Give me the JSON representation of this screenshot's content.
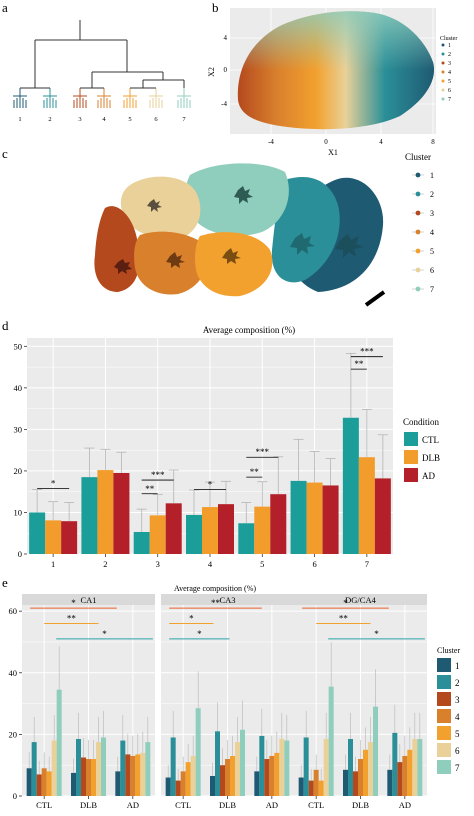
{
  "panels": {
    "a": {
      "label": "a",
      "leaf_labels": [
        "1",
        "2",
        "3",
        "4",
        "5",
        "6",
        "7"
      ]
    },
    "b": {
      "label": "b",
      "xlabel": "X1",
      "ylabel": "X2",
      "x_ticks": [
        "-4",
        "0",
        "4",
        "8"
      ],
      "y_ticks": [
        "4",
        "0",
        "-4"
      ],
      "legend_title": "Cluster",
      "legend_items": [
        "1",
        "2",
        "3",
        "4",
        "5",
        "6",
        "7"
      ]
    },
    "c": {
      "label": "c",
      "legend_title": "Cluster",
      "legend_items": [
        "1",
        "2",
        "3",
        "4",
        "5",
        "6",
        "7"
      ]
    },
    "d": {
      "label": "d"
    },
    "e": {
      "label": "e"
    }
  },
  "colors": {
    "cluster": [
      "#1f5a73",
      "#2a8f98",
      "#b4491e",
      "#d9802d",
      "#f2a12f",
      "#e9d199",
      "#8fcdbd"
    ],
    "condition": [
      "#1b9e9a",
      "#f29c2b",
      "#b3202a"
    ],
    "sig_e": [
      "#e8612c",
      "#f2a12f",
      "#2aa3a8"
    ],
    "panel_bg": "#ebebeb",
    "grid": "#ffffff"
  },
  "chart_data": [
    {
      "type": "bar",
      "panel": "d",
      "title": "Average composition (%)",
      "categories": [
        "1",
        "2",
        "3",
        "4",
        "5",
        "6",
        "7"
      ],
      "series": [
        {
          "name": "CTL",
          "values": [
            10,
            18.5,
            5.3,
            9.4,
            7.4,
            17.6,
            32.8
          ],
          "err": [
            5.5,
            7,
            5.5,
            6,
            5,
            10,
            15.5
          ]
        },
        {
          "name": "DLB",
          "values": [
            8.1,
            20.2,
            9.3,
            11.3,
            11.4,
            17.2,
            23.3
          ],
          "err": [
            4.5,
            5,
            5,
            6,
            6,
            7.5,
            11.5
          ]
        },
        {
          "name": "AD",
          "values": [
            7.9,
            19.5,
            12.2,
            12,
            14.4,
            16.5,
            18.2
          ],
          "err": [
            4.5,
            5,
            8,
            5.5,
            9,
            6.5,
            10.5
          ]
        }
      ],
      "ylim": [
        0,
        52
      ],
      "y_ticks": [
        "0",
        "10",
        "20",
        "30",
        "40",
        "50"
      ],
      "legend_title": "Condition",
      "legend_position": "right",
      "significance": [
        {
          "category": "1",
          "label": "*"
        },
        {
          "category": "3",
          "label": "**"
        },
        {
          "category": "3",
          "label": "***"
        },
        {
          "category": "4",
          "label": "*"
        },
        {
          "category": "5",
          "label": "**"
        },
        {
          "category": "5",
          "label": "***"
        },
        {
          "category": "7",
          "label": "**"
        },
        {
          "category": "7",
          "label": "***"
        }
      ]
    },
    {
      "type": "bar",
      "panel": "e",
      "title": "Average composition (%)",
      "facets": [
        "CA1",
        "CA3",
        "DG/CA4"
      ],
      "categories": [
        "CTL",
        "DLB",
        "AD"
      ],
      "series_names": [
        "1",
        "2",
        "3",
        "4",
        "5",
        "6",
        "7"
      ],
      "values": [
        [
          [
            9,
            17.5,
            7,
            9,
            8,
            18,
            34.5
          ],
          [
            7.5,
            18.5,
            12.5,
            12,
            12,
            17.5,
            19
          ],
          [
            8,
            18,
            13.5,
            13,
            13.5,
            14,
            17.5
          ]
        ],
        [
          [
            6,
            19,
            5,
            8,
            11,
            13,
            28.5
          ],
          [
            6.5,
            21,
            10,
            12,
            13,
            17.5,
            21.5
          ],
          [
            8,
            19.5,
            12,
            13,
            14,
            18.5,
            18
          ]
        ],
        [
          [
            6,
            19,
            5,
            8.5,
            5,
            18.5,
            35.5
          ],
          [
            8.5,
            18.5,
            8,
            12,
            15,
            17.5,
            29
          ],
          [
            8.5,
            20.5,
            11,
            13,
            15,
            18.5,
            18.5
          ]
        ]
      ],
      "ylim": [
        0,
        62
      ],
      "y_ticks": [
        "0",
        "20",
        "40",
        "60"
      ],
      "legend_title": "Cluster",
      "legend_position": "right",
      "significance": [
        {
          "facet": "CA1",
          "label": "*"
        },
        {
          "facet": "CA1",
          "label": "**"
        },
        {
          "facet": "CA1",
          "label": "*"
        },
        {
          "facet": "CA3",
          "label": "**"
        },
        {
          "facet": "CA3",
          "label": "*"
        },
        {
          "facet": "CA3",
          "label": "*"
        },
        {
          "facet": "DG/CA4",
          "label": "*"
        },
        {
          "facet": "DG/CA4",
          "label": "**"
        },
        {
          "facet": "DG/CA4",
          "label": "*"
        }
      ]
    }
  ]
}
